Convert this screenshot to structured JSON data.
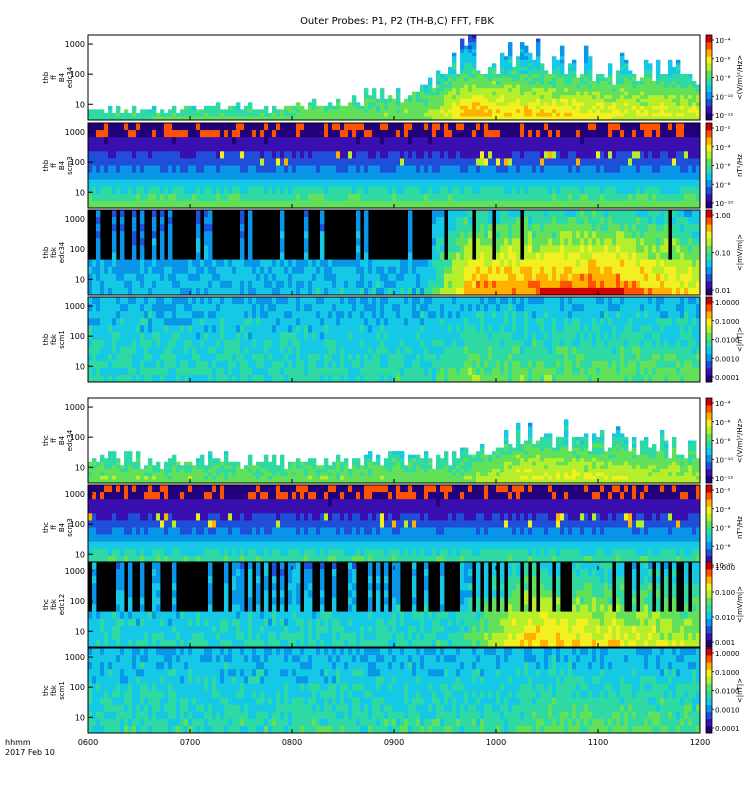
{
  "chart_data": {
    "type": "heatmap",
    "title": "Outer Probes: P1, P2 (TH-B,C) FFT, FBK",
    "x_axis": {
      "ticks": [
        "0600",
        "0700",
        "0800",
        "0900",
        "1000",
        "1100",
        "1200"
      ],
      "label_lines": [
        "hhmm",
        "2017 Feb 10"
      ]
    },
    "colormap": [
      "#22007a",
      "#3a0fb0",
      "#1f4fd8",
      "#0a96e8",
      "#14c8e6",
      "#2fd9a3",
      "#62e05a",
      "#b5ef2c",
      "#f2f020",
      "#ffb000",
      "#ff5200",
      "#d00000"
    ],
    "panels": [
      {
        "id": "thb-ff-b4-edc34",
        "ylabel_lines": [
          "thb",
          "ff",
          "B4",
          "edc34"
        ],
        "yticks": [
          "10",
          "100",
          "1000"
        ],
        "yscale": "log",
        "cbar_label": "<(V/m)²/Hz>",
        "cbar_ticks": [
          "10⁻⁴",
          "10⁻⁶",
          "10⁻⁸",
          "10⁻¹⁰",
          "10⁻¹²"
        ],
        "style": "sparse",
        "activity": [
          [
            0.0,
            0.15
          ],
          [
            0.3,
            0.2
          ],
          [
            0.55,
            0.4
          ],
          [
            0.62,
            0.95
          ],
          [
            0.8,
            0.75
          ],
          [
            1.0,
            0.65
          ]
        ]
      },
      {
        "id": "thb-ff-b4-scm3",
        "ylabel_lines": [
          "thb",
          "ff",
          "B4",
          "scm3"
        ],
        "yticks": [
          "10",
          "100",
          "1000"
        ],
        "yscale": "log",
        "cbar_label": "nT²/Hz",
        "cbar_ticks": [
          "10⁻²",
          "10⁻⁴",
          "10⁻⁶",
          "10⁻⁸",
          "10⁻¹⁰"
        ],
        "style": "bands",
        "activity": [
          [
            0.0,
            0.1
          ],
          [
            0.6,
            0.15
          ],
          [
            0.65,
            0.55
          ],
          [
            0.75,
            0.3
          ],
          [
            1.0,
            0.2
          ]
        ]
      },
      {
        "id": "thb-fbk-edc34",
        "ylabel_lines": [
          "thb",
          "fbk",
          "edc34"
        ],
        "yticks": [
          "10",
          "100",
          "1000"
        ],
        "yscale": "log",
        "cbar_label": "<|mV/m|>",
        "cbar_ticks": [
          "1.00",
          "0.10",
          "0.01"
        ],
        "style": "blocks",
        "activity": [
          [
            0.0,
            0.2
          ],
          [
            0.55,
            0.25
          ],
          [
            0.62,
            0.9
          ],
          [
            0.85,
            1.0
          ],
          [
            1.0,
            0.7
          ]
        ]
      },
      {
        "id": "thb-fbk-scm1",
        "ylabel_lines": [
          "thb",
          "fbk",
          "scm1"
        ],
        "yticks": [
          "10",
          "100",
          "1000"
        ],
        "yscale": "log",
        "cbar_label": "<|nT|>",
        "cbar_ticks": [
          "1.0000",
          "0.1000",
          "0.0100",
          "0.0010",
          "0.0001"
        ],
        "style": "smooth",
        "activity": [
          [
            0.0,
            0.3
          ],
          [
            0.55,
            0.35
          ],
          [
            0.62,
            0.65
          ],
          [
            1.0,
            0.55
          ]
        ]
      },
      {
        "id": "thc-ff-b4-edc34",
        "ylabel_lines": [
          "thc",
          "ff",
          "B4",
          "edc34"
        ],
        "yticks": [
          "10",
          "100",
          "1000"
        ],
        "yscale": "log",
        "cbar_label": "<(V/m)²/Hz>",
        "cbar_ticks": [
          "10⁻⁴",
          "10⁻⁶",
          "10⁻⁸",
          "10⁻¹⁰",
          "10⁻¹²"
        ],
        "style": "sparse",
        "activity": [
          [
            0.0,
            0.35
          ],
          [
            0.3,
            0.3
          ],
          [
            0.6,
            0.35
          ],
          [
            0.72,
            0.7
          ],
          [
            1.0,
            0.5
          ]
        ]
      },
      {
        "id": "thc-ff-b4-scm3",
        "ylabel_lines": [
          "thc",
          "ff",
          "B4",
          "scm3"
        ],
        "yticks": [
          "10",
          "100",
          "1000"
        ],
        "yscale": "log",
        "cbar_label": "nT²/Hz",
        "cbar_ticks": [
          "10⁻²",
          "10⁻⁴",
          "10⁻⁶",
          "10⁻⁸",
          "10⁻¹⁰"
        ],
        "style": "bands",
        "activity": [
          [
            0.0,
            0.12
          ],
          [
            0.7,
            0.15
          ],
          [
            0.75,
            0.3
          ],
          [
            1.0,
            0.2
          ]
        ]
      },
      {
        "id": "thc-fbk-edc12",
        "ylabel_lines": [
          "thc",
          "fbk",
          "edc12"
        ],
        "yticks": [
          "10",
          "100",
          "1000"
        ],
        "yscale": "log",
        "cbar_label": "<|mV/m|>",
        "cbar_ticks": [
          "1.000",
          "0.100",
          "0.010",
          "0.001"
        ],
        "style": "blocks",
        "activity": [
          [
            0.0,
            0.3
          ],
          [
            0.6,
            0.35
          ],
          [
            0.72,
            0.85
          ],
          [
            1.0,
            0.6
          ]
        ]
      },
      {
        "id": "thc-fbk-scm1",
        "ylabel_lines": [
          "thc",
          "fbk",
          "scm1"
        ],
        "yticks": [
          "10",
          "100",
          "1000"
        ],
        "yscale": "log",
        "cbar_label": "<|nT|>",
        "cbar_ticks": [
          "1.0000",
          "0.1000",
          "0.0100",
          "0.0010",
          "0.0001"
        ],
        "style": "smooth",
        "activity": [
          [
            0.0,
            0.35
          ],
          [
            0.7,
            0.4
          ],
          [
            0.72,
            0.6
          ],
          [
            1.0,
            0.5
          ]
        ]
      }
    ]
  }
}
